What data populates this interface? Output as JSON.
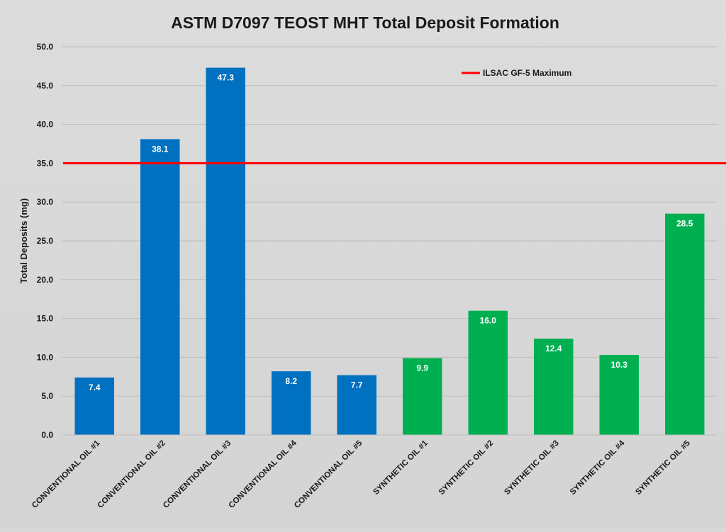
{
  "chart_data": {
    "type": "bar",
    "title": "ASTM D7097 TEOST MHT Total Deposit Formation",
    "xlabel": "",
    "ylabel": "Total Deposits (mg)",
    "ylim": [
      0,
      50
    ],
    "ytick_step": 5,
    "ytick_format_decimals": 1,
    "grid": true,
    "categories": [
      "CONVENTIONAL OIL #1",
      "CONVENTIONAL OIL #2",
      "CONVENTIONAL OIL #3",
      "CONVENTIONAL OIL #4",
      "CONVENTIONAL OIL #5",
      "SYNTHETIC OIL #1",
      "SYNTHETIC OIL #2",
      "SYNTHETIC OIL #3",
      "SYNTHETIC OIL #4",
      "SYNTHETIC OIL #5"
    ],
    "values": [
      7.4,
      38.1,
      47.3,
      8.2,
      7.7,
      9.9,
      16.0,
      12.4,
      10.3,
      28.5
    ],
    "data_labels": [
      "7.4",
      "38.1",
      "47.3",
      "8.2",
      "7.7",
      "9.9",
      "16.0",
      "12.4",
      "10.3",
      "28.5"
    ],
    "bar_colors": [
      "#0070c0",
      "#0070c0",
      "#0070c0",
      "#0070c0",
      "#0070c0",
      "#00b050",
      "#00b050",
      "#00b050",
      "#00b050",
      "#00b050"
    ],
    "reference_line": {
      "name": "ILSAC GF-5 Maximum",
      "value": 35.0,
      "color": "#ff0000"
    },
    "legend_placement": "top-right"
  }
}
